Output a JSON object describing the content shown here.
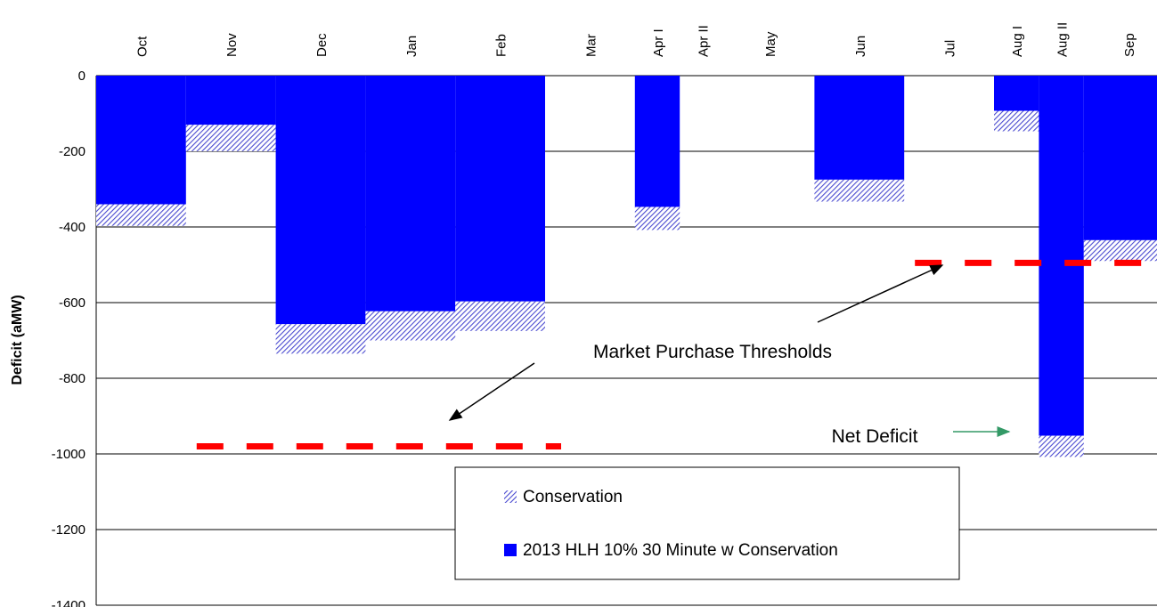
{
  "chart_data": {
    "type": "bar",
    "stacked": true,
    "y_label": "Deficit (aMW)",
    "categories": [
      "Oct",
      "Nov",
      "Dec",
      "Jan",
      "Feb",
      "Mar",
      "Apr I",
      "Apr II",
      "May",
      "Jun",
      "Jul",
      "Aug I",
      "Aug II",
      "Sep"
    ],
    "series": [
      {
        "name": "Conservation",
        "color": "#4a4ad0",
        "pattern": "hatch",
        "values": [
          -57,
          -70,
          -78,
          -77,
          -78,
          0,
          -61,
          0,
          0,
          -58,
          0,
          -54,
          -56,
          -55
        ]
      },
      {
        "name": "2013 HLH 10% 30 Minute w Conservation",
        "color": "#0000ff",
        "values": [
          -340,
          -130,
          -657,
          -623,
          -597,
          0,
          -347,
          0,
          0,
          -275,
          0,
          -93,
          -952,
          -435
        ]
      }
    ],
    "reference_lines": [
      {
        "value": -980,
        "from": "Nov",
        "to": "Feb",
        "color": "#ff0000"
      },
      {
        "value": -495,
        "from": "Jul",
        "to": "Sep",
        "color": "#ff0000"
      }
    ],
    "annotations": [
      {
        "text": "Market Purchase Thresholds",
        "color": "#000000"
      },
      {
        "text": "Net Deficit",
        "color": "#339966"
      }
    ],
    "ylim": [
      -1400,
      0
    ],
    "yticks": [
      -1400,
      -1200,
      -1000,
      -800,
      -600,
      -400,
      -200,
      0
    ],
    "grid": true,
    "legend": "lower center"
  }
}
